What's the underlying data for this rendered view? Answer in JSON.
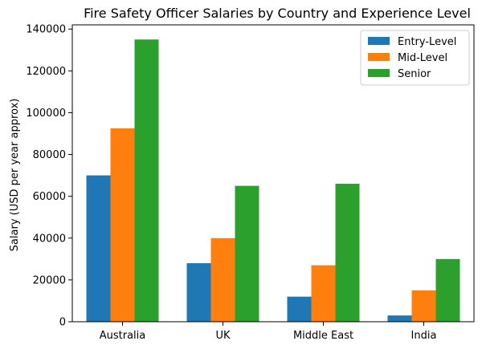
{
  "chart_data": {
    "type": "bar",
    "title": "Fire Safety Officer Salaries by Country and Experience Level",
    "xlabel": "",
    "ylabel": "Salary (USD per year approx)",
    "categories": [
      "Australia",
      "UK",
      "Middle East",
      "India"
    ],
    "series": [
      {
        "name": "Entry-Level",
        "color": "#1f77b4",
        "values": [
          70000,
          28000,
          12000,
          3000
        ]
      },
      {
        "name": "Mid-Level",
        "color": "#ff7f0e",
        "values": [
          92500,
          40000,
          27000,
          15000
        ]
      },
      {
        "name": "Senior",
        "color": "#2ca02c",
        "values": [
          135000,
          65000,
          66000,
          30000
        ]
      }
    ],
    "ylim": [
      0,
      142000
    ],
    "yticks": [
      0,
      20000,
      40000,
      60000,
      80000,
      100000,
      120000,
      140000
    ],
    "yticklabels": [
      "0",
      "20000",
      "40000",
      "60000",
      "80000",
      "100000",
      "120000",
      "140000"
    ],
    "legend": "top-right",
    "grid": false
  }
}
